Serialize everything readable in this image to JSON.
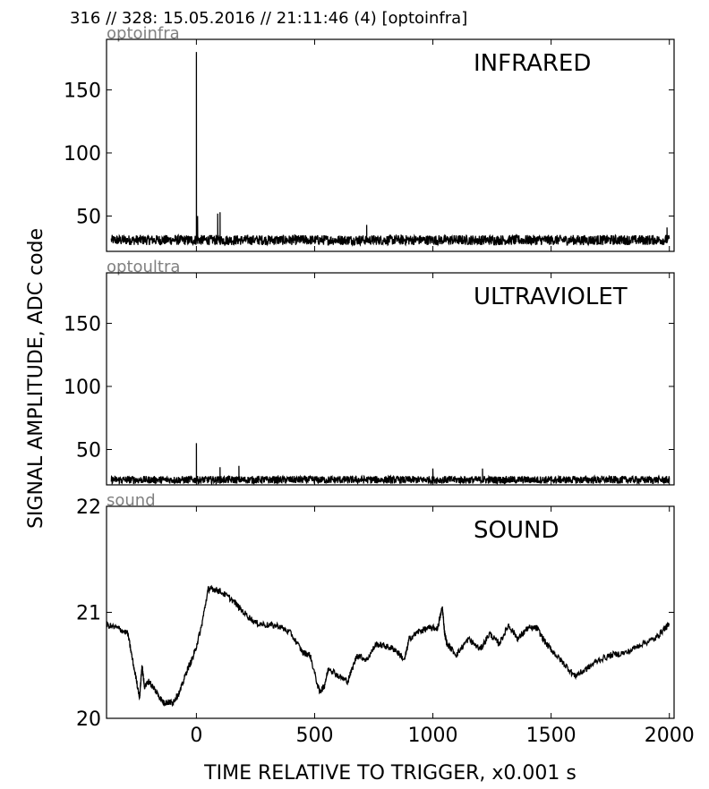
{
  "header": {
    "title": "316 // 328:   15.05.2016 // 21:11:46 (4)  [optoinfra]"
  },
  "axes": {
    "ylabel": "SIGNAL AMPLITUDE,  ADC code",
    "xlabel": "TIME RELATIVE TO TRIGGER,   x0.001 s"
  },
  "chart_data": [
    {
      "type": "line",
      "channel": "optoinfra",
      "title": "INFRARED",
      "xlim": [
        -380,
        2020
      ],
      "ylim": [
        22,
        190
      ],
      "yticks": [
        50,
        100,
        150
      ],
      "x_ticks": [
        0,
        500,
        1000,
        1500,
        2000
      ],
      "baseline": 31,
      "noise_amplitude": 4,
      "spikes": [
        {
          "x": 0,
          "y": 180
        },
        {
          "x": 5,
          "y": 50
        },
        {
          "x": 90,
          "y": 52
        },
        {
          "x": 100,
          "y": 53
        },
        {
          "x": 720,
          "y": 43
        },
        {
          "x": 1990,
          "y": 41
        }
      ]
    },
    {
      "type": "line",
      "channel": "optoultra",
      "title": "ULTRAVIOLET",
      "xlim": [
        -380,
        2020
      ],
      "ylim": [
        22,
        190
      ],
      "yticks": [
        50,
        100,
        150
      ],
      "x_ticks": [
        0,
        500,
        1000,
        1500,
        2000
      ],
      "baseline": 26,
      "noise_amplitude": 3,
      "spikes": [
        {
          "x": 0,
          "y": 55
        },
        {
          "x": 100,
          "y": 36
        },
        {
          "x": 180,
          "y": 37
        },
        {
          "x": 1000,
          "y": 35
        },
        {
          "x": 1210,
          "y": 35
        }
      ]
    },
    {
      "type": "line",
      "channel": "sound",
      "title": "SOUND",
      "xlim": [
        -380,
        2020
      ],
      "ylim": [
        20,
        22
      ],
      "yticks": [
        20,
        21,
        22
      ],
      "x_ticks": [
        0,
        500,
        1000,
        1500,
        2000
      ],
      "x_tick_labels": [
        "0",
        "500",
        "1000",
        "1500",
        "2000"
      ],
      "noise_amplitude": 0.03,
      "x": [
        -380,
        -330,
        -290,
        -270,
        -240,
        -230,
        -220,
        -200,
        -170,
        -140,
        -120,
        -100,
        -70,
        -40,
        -10,
        20,
        50,
        70,
        100,
        150,
        200,
        250,
        300,
        350,
        400,
        450,
        480,
        520,
        540,
        560,
        600,
        640,
        680,
        720,
        760,
        800,
        840,
        880,
        900,
        940,
        980,
        1020,
        1040,
        1050,
        1060,
        1100,
        1150,
        1200,
        1240,
        1280,
        1320,
        1360,
        1400,
        1440,
        1480,
        1520,
        1560,
        1600,
        1640,
        1700,
        1760,
        1820,
        1880,
        1940,
        1980,
        2000
      ],
      "y": [
        20.88,
        20.85,
        20.8,
        20.55,
        20.2,
        20.5,
        20.3,
        20.35,
        20.25,
        20.15,
        20.15,
        20.15,
        20.25,
        20.45,
        20.6,
        20.85,
        21.22,
        21.22,
        21.2,
        21.12,
        21.0,
        20.9,
        20.88,
        20.87,
        20.8,
        20.62,
        20.6,
        20.25,
        20.3,
        20.48,
        20.4,
        20.35,
        20.6,
        20.55,
        20.7,
        20.68,
        20.65,
        20.55,
        20.75,
        20.82,
        20.85,
        20.85,
        21.05,
        20.8,
        20.7,
        20.6,
        20.75,
        20.65,
        20.8,
        20.7,
        20.88,
        20.75,
        20.85,
        20.85,
        20.7,
        20.6,
        20.5,
        20.4,
        20.45,
        20.55,
        20.6,
        20.62,
        20.7,
        20.75,
        20.85,
        20.88
      ]
    }
  ]
}
